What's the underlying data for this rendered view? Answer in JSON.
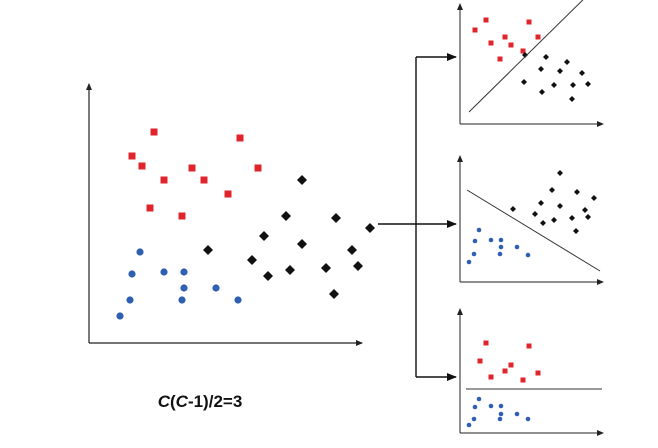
{
  "colors": {
    "class_red": "#e0242b",
    "class_blue": "#2f5fb0",
    "class_black": "#111111",
    "axis": "#222222",
    "arrow": "#111111"
  },
  "formula": {
    "c1": "C",
    "p1": "(",
    "c2": "C",
    "rest": "-1)/2=3"
  },
  "main_plot": {
    "red_squares": [
      [
        2,
        9.3
      ],
      [
        6.3,
        9
      ],
      [
        0.9,
        8.1
      ],
      [
        1.4,
        7.6
      ],
      [
        3.9,
        7.5
      ],
      [
        7.2,
        7.5
      ],
      [
        2.5,
        6.9
      ],
      [
        4.5,
        6.9
      ],
      [
        5.7,
        6.2
      ],
      [
        1.8,
        5.5
      ],
      [
        3.4,
        5.1
      ]
    ],
    "black_diamonds": [
      [
        9.4,
        6.9
      ],
      [
        8.6,
        5.1
      ],
      [
        11.1,
        5
      ],
      [
        12.8,
        4.5
      ],
      [
        4.7,
        3.4
      ],
      [
        7.5,
        4.1
      ],
      [
        9.4,
        3.7
      ],
      [
        11.9,
        3.4
      ],
      [
        6.9,
        2.9
      ],
      [
        8.8,
        2.4
      ],
      [
        10.6,
        2.5
      ],
      [
        12.2,
        2.6
      ],
      [
        7.7,
        2.1
      ],
      [
        11,
        1.2
      ]
    ],
    "blue_circles": [
      [
        1.3,
        3.3
      ],
      [
        0.9,
        2.2
      ],
      [
        2.5,
        2.3
      ],
      [
        3.5,
        2.3
      ],
      [
        3.5,
        1.5
      ],
      [
        5.1,
        1.5
      ],
      [
        0.8,
        0.9
      ],
      [
        3.4,
        0.9
      ],
      [
        6.2,
        0.9
      ],
      [
        0.3,
        0.1
      ]
    ]
  },
  "subplots": [
    {
      "id": "red-vs-black",
      "red_squares": [
        [
          2,
          9.5
        ],
        [
          6.3,
          9.3
        ],
        [
          0.9,
          8.5
        ],
        [
          3.9,
          7.8
        ],
        [
          7.2,
          7.8
        ],
        [
          2.5,
          7.2
        ],
        [
          4.5,
          7
        ],
        [
          5.7,
          6.4
        ],
        [
          3.4,
          5.6
        ]
      ],
      "black_diamonds": [
        [
          5.9,
          6
        ],
        [
          8,
          5.8
        ],
        [
          10.1,
          5.3
        ],
        [
          7.5,
          4.6
        ],
        [
          9.4,
          4.4
        ],
        [
          11.6,
          4.2
        ],
        [
          5.8,
          3.3
        ],
        [
          8.8,
          3
        ],
        [
          10.7,
          3
        ],
        [
          12.2,
          3.1
        ],
        [
          7.6,
          2.3
        ],
        [
          10.6,
          1.6
        ]
      ],
      "boundary": [
        [
          0.3,
          0.3
        ],
        [
          13.2,
          13
        ]
      ]
    },
    {
      "id": "black-vs-blue",
      "black_diamonds": [
        [
          9.4,
          10
        ],
        [
          8.6,
          8.3
        ],
        [
          11.1,
          8.1
        ],
        [
          12.8,
          7.5
        ],
        [
          4.7,
          6.4
        ],
        [
          7.5,
          7
        ],
        [
          9.4,
          6.7
        ],
        [
          11.9,
          6.3
        ],
        [
          6.9,
          5.9
        ],
        [
          8.8,
          5.3
        ],
        [
          10.6,
          5.5
        ],
        [
          12.2,
          5.6
        ],
        [
          7.7,
          5
        ],
        [
          11,
          4.2
        ]
      ],
      "blue_circles": [
        [
          1.3,
          4.3
        ],
        [
          0.9,
          3.2
        ],
        [
          2.5,
          3.3
        ],
        [
          3.5,
          3.3
        ],
        [
          3.5,
          2.6
        ],
        [
          5.1,
          2.6
        ],
        [
          0.8,
          1.9
        ],
        [
          3.4,
          1.9
        ],
        [
          6.2,
          1.8
        ],
        [
          0.3,
          1.1
        ]
      ],
      "boundary": [
        [
          0.1,
          8.3
        ],
        [
          13.4,
          0.2
        ]
      ]
    },
    {
      "id": "red-vs-blue",
      "red_squares": [
        [
          2,
          8.2
        ],
        [
          6.3,
          7.9
        ],
        [
          1.4,
          6.4
        ],
        [
          4.5,
          6
        ],
        [
          3.9,
          5.4
        ],
        [
          7.2,
          5.2
        ],
        [
          2.5,
          4.8
        ],
        [
          5.7,
          4.5
        ]
      ],
      "blue_circles": [
        [
          1.3,
          2.6
        ],
        [
          0.9,
          1.8
        ],
        [
          2.5,
          1.9
        ],
        [
          3.5,
          1.9
        ],
        [
          3.5,
          1.1
        ],
        [
          5.1,
          1.1
        ],
        [
          0.8,
          0.6
        ],
        [
          3.4,
          0.6
        ],
        [
          6.2,
          0.6
        ],
        [
          0.3,
          0
        ]
      ],
      "boundary": [
        [
          0,
          3.6
        ],
        [
          13.6,
          3.6
        ]
      ]
    }
  ]
}
